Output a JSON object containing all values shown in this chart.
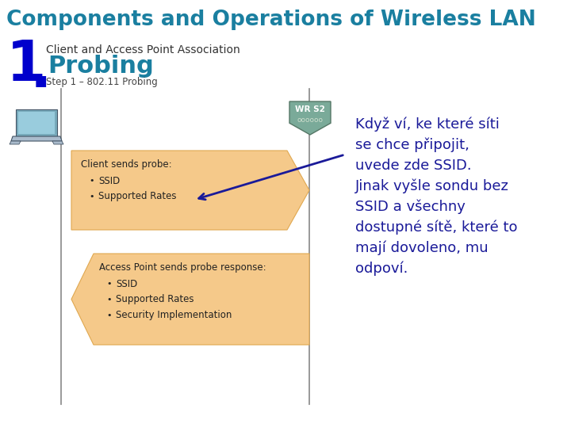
{
  "bg_color": "#ffffff",
  "title": "Components and Operations of Wireless LAN",
  "title_color": "#1a7fa0",
  "title_fontsize": 19,
  "subtitle_number": "1",
  "subtitle_dot": ".",
  "subtitle_number_color": "#0000cc",
  "subtitle_number_fontsize": 52,
  "subtitle_label": "Client and Access Point Association",
  "subtitle_label_color": "#333333",
  "subtitle_label_fontsize": 10,
  "subtitle_probing": "Probing",
  "subtitle_probing_color": "#1a7fa0",
  "subtitle_probing_fontsize": 22,
  "step_label": "Step 1 – 802.11 Probing",
  "step_label_color": "#444444",
  "step_label_fontsize": 8.5,
  "arrow_color": "#1a1a99",
  "box_color": "#f5c98a",
  "box_edge_color": "#e0a850",
  "box1_title": "Client sends probe:",
  "box1_items": [
    "SSID",
    "Supported Rates"
  ],
  "box2_title": "Access Point sends probe response:",
  "box2_items": [
    "SSID",
    "Supported Rates",
    "Security Implementation"
  ],
  "text_block_lines": [
    "Když ví, ke které síti",
    "se chce připojit,",
    "uvede zde SSID.",
    "Jinak vyšle sondu bez",
    "SSID a všechny",
    "dostupné sítě, které to",
    "mají dovoleno, mu",
    "odpoví."
  ],
  "text_block_color": "#1a1a99",
  "text_block_fontsize": 13,
  "wrs2_label_top": "WR S2",
  "wrs2_label_bottom": "oooooo",
  "wrs2_color_top": "#669988",
  "wrs2_color_bottom": "#557766",
  "line_color": "#888888",
  "laptop_body_color": "#669999",
  "laptop_screen_color": "#aaccdd",
  "laptop_base_color": "#88aaaa"
}
